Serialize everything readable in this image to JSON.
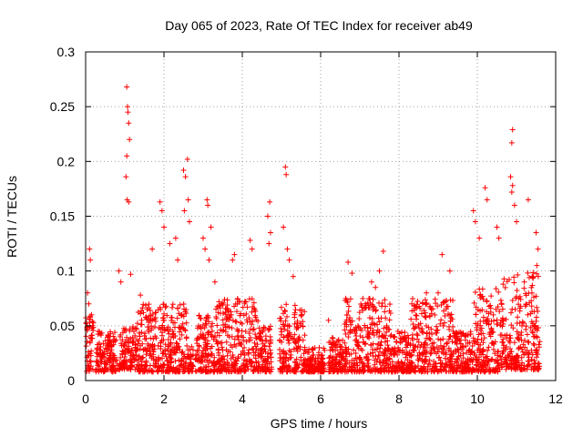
{
  "chart_data": {
    "type": "scatter",
    "title": "Day 065 of 2023, Rate Of TEC Index for receiver ab49",
    "xlabel": "GPS time / hours",
    "ylabel": "ROTI / TECUs",
    "xlim": [
      0,
      12
    ],
    "ylim": [
      0,
      0.3
    ],
    "xticks": [
      "0",
      "2",
      "4",
      "6",
      "8",
      "10",
      "12"
    ],
    "yticks": [
      "0",
      "0.05",
      "0.1",
      "0.15",
      "0.2",
      "0.25",
      "0.3"
    ],
    "grid": true,
    "marker": "+",
    "color": "#ff0000",
    "series": [
      {
        "name": "ab49",
        "points": [
          [
            0.1,
            0.12
          ],
          [
            0.12,
            0.11
          ],
          [
            0.05,
            0.08
          ],
          [
            0.08,
            0.07
          ],
          [
            0.15,
            0.06
          ],
          [
            0.85,
            0.1
          ],
          [
            0.9,
            0.09
          ],
          [
            1.05,
            0.268
          ],
          [
            1.07,
            0.25
          ],
          [
            1.08,
            0.245
          ],
          [
            1.1,
            0.235
          ],
          [
            1.12,
            0.22
          ],
          [
            1.05,
            0.205
          ],
          [
            1.03,
            0.186
          ],
          [
            1.06,
            0.165
          ],
          [
            1.1,
            0.163
          ],
          [
            1.15,
            0.097
          ],
          [
            1.4,
            0.078
          ],
          [
            1.7,
            0.12
          ],
          [
            1.9,
            0.163
          ],
          [
            1.95,
            0.155
          ],
          [
            2.0,
            0.14
          ],
          [
            2.15,
            0.125
          ],
          [
            2.3,
            0.13
          ],
          [
            2.35,
            0.11
          ],
          [
            2.5,
            0.192
          ],
          [
            2.55,
            0.186
          ],
          [
            2.6,
            0.202
          ],
          [
            2.62,
            0.165
          ],
          [
            2.52,
            0.155
          ],
          [
            2.65,
            0.145
          ],
          [
            3.0,
            0.13
          ],
          [
            3.05,
            0.12
          ],
          [
            3.1,
            0.165
          ],
          [
            3.12,
            0.16
          ],
          [
            3.2,
            0.14
          ],
          [
            3.15,
            0.11
          ],
          [
            3.3,
            0.09
          ],
          [
            3.8,
            0.115
          ],
          [
            3.75,
            0.11
          ],
          [
            4.2,
            0.128
          ],
          [
            4.25,
            0.12
          ],
          [
            4.7,
            0.163
          ],
          [
            4.65,
            0.15
          ],
          [
            4.72,
            0.135
          ],
          [
            4.68,
            0.125
          ],
          [
            5.1,
            0.195
          ],
          [
            5.12,
            0.188
          ],
          [
            5.05,
            0.14
          ],
          [
            5.15,
            0.12
          ],
          [
            5.2,
            0.11
          ],
          [
            5.3,
            0.095
          ],
          [
            6.2,
            0.055
          ],
          [
            6.7,
            0.108
          ],
          [
            6.8,
            0.098
          ],
          [
            7.3,
            0.09
          ],
          [
            7.5,
            0.1
          ],
          [
            7.6,
            0.118
          ],
          [
            7.4,
            0.085
          ],
          [
            8.7,
            0.08
          ],
          [
            9.0,
            0.08
          ],
          [
            9.1,
            0.115
          ],
          [
            9.3,
            0.1
          ],
          [
            9.9,
            0.155
          ],
          [
            9.95,
            0.145
          ],
          [
            10.2,
            0.176
          ],
          [
            10.25,
            0.165
          ],
          [
            10.05,
            0.13
          ],
          [
            10.5,
            0.14
          ],
          [
            10.55,
            0.13
          ],
          [
            10.85,
            0.186
          ],
          [
            10.9,
            0.178
          ],
          [
            10.88,
            0.172
          ],
          [
            10.95,
            0.16
          ],
          [
            10.9,
            0.229
          ],
          [
            10.88,
            0.217
          ],
          [
            11.0,
            0.145
          ],
          [
            11.3,
            0.165
          ],
          [
            11.5,
            0.135
          ],
          [
            11.55,
            0.12
          ],
          [
            11.52,
            0.105
          ],
          [
            11.4,
            0.095
          ],
          [
            11.2,
            0.09
          ]
        ],
        "dense_bands": [
          {
            "x0": 0.0,
            "x1": 0.2,
            "ymin": 0.008,
            "ymax": 0.06
          },
          {
            "x0": 0.25,
            "x1": 0.8,
            "ymin": 0.008,
            "ymax": 0.045
          },
          {
            "x0": 0.85,
            "x1": 1.3,
            "ymin": 0.01,
            "ymax": 0.05
          },
          {
            "x0": 1.3,
            "x1": 2.6,
            "ymin": 0.008,
            "ymax": 0.07
          },
          {
            "x0": 2.6,
            "x1": 2.75,
            "ymin": 0.008,
            "ymax": 0.035
          },
          {
            "x0": 2.8,
            "x1": 3.3,
            "ymin": 0.008,
            "ymax": 0.06
          },
          {
            "x0": 3.3,
            "x1": 4.4,
            "ymin": 0.008,
            "ymax": 0.075
          },
          {
            "x0": 4.4,
            "x1": 4.75,
            "ymin": 0.008,
            "ymax": 0.05
          },
          {
            "x0": 4.95,
            "x1": 5.6,
            "ymin": 0.008,
            "ymax": 0.07
          },
          {
            "x0": 5.6,
            "x1": 6.1,
            "ymin": 0.008,
            "ymax": 0.03
          },
          {
            "x0": 6.2,
            "x1": 6.6,
            "ymin": 0.008,
            "ymax": 0.04
          },
          {
            "x0": 6.6,
            "x1": 7.8,
            "ymin": 0.008,
            "ymax": 0.075
          },
          {
            "x0": 7.8,
            "x1": 8.3,
            "ymin": 0.008,
            "ymax": 0.045
          },
          {
            "x0": 8.3,
            "x1": 9.4,
            "ymin": 0.008,
            "ymax": 0.075
          },
          {
            "x0": 9.4,
            "x1": 9.9,
            "ymin": 0.008,
            "ymax": 0.045
          },
          {
            "x0": 9.9,
            "x1": 10.6,
            "ymin": 0.008,
            "ymax": 0.085
          },
          {
            "x0": 10.6,
            "x1": 11.6,
            "ymin": 0.01,
            "ymax": 0.1
          }
        ]
      }
    ]
  }
}
